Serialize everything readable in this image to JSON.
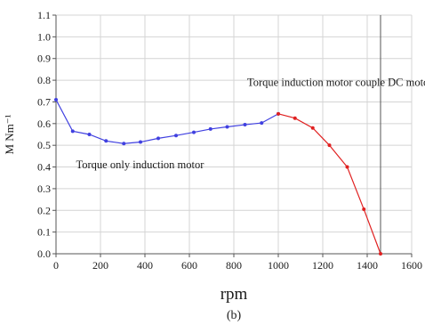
{
  "chart_data": {
    "type": "line",
    "title": "",
    "xlabel": "rpm",
    "ylabel": "M Nm⁻¹",
    "caption": "(b)",
    "xlim": [
      0,
      1600
    ],
    "ylim": [
      0,
      1.1
    ],
    "x_ticks": [
      0,
      200,
      400,
      600,
      800,
      1000,
      1200,
      1400,
      1600
    ],
    "y_ticks": [
      0.0,
      0.1,
      0.2,
      0.3,
      0.4,
      0.5,
      0.6,
      0.7,
      0.8,
      0.9,
      1.0,
      1.1
    ],
    "grid": true,
    "vertical_line_x": 1460,
    "series": [
      {
        "color": "#4040e0",
        "points": [
          [
            0,
            0.71
          ],
          [
            75,
            0.565
          ],
          [
            150,
            0.55
          ],
          [
            225,
            0.52
          ],
          [
            305,
            0.508
          ],
          [
            380,
            0.515
          ],
          [
            460,
            0.532
          ],
          [
            540,
            0.545
          ],
          [
            620,
            0.56
          ],
          [
            695,
            0.575
          ],
          [
            770,
            0.585
          ],
          [
            850,
            0.595
          ],
          [
            925,
            0.603
          ],
          [
            1000,
            0.645
          ]
        ]
      },
      {
        "color": "#e02020",
        "points": [
          [
            1000,
            0.645
          ],
          [
            1075,
            0.625
          ],
          [
            1155,
            0.58
          ],
          [
            1230,
            0.5
          ],
          [
            1310,
            0.4
          ],
          [
            1385,
            0.205
          ],
          [
            1460,
            0.0
          ]
        ]
      }
    ],
    "annotations": [
      {
        "text": "Torque induction motor couple DC motor",
        "x": 860,
        "y": 0.79
      },
      {
        "text": "Torque only induction motor",
        "x": 90,
        "y": 0.41
      }
    ]
  }
}
